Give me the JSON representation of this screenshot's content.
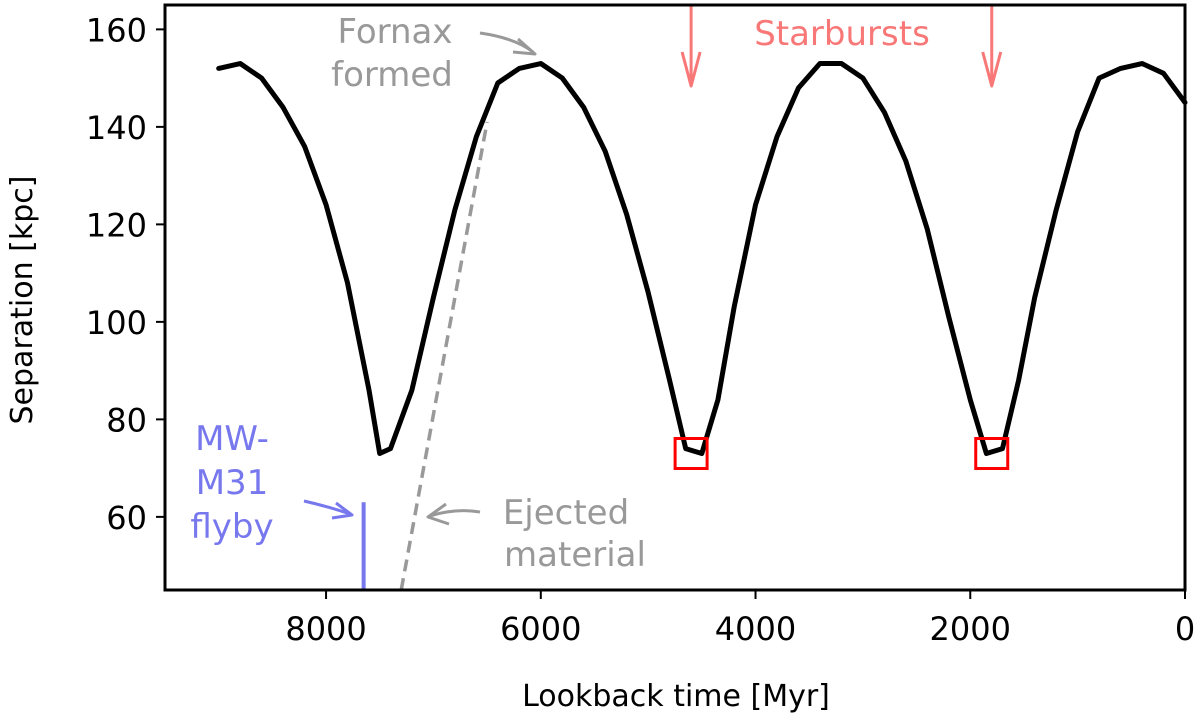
{
  "chart_data": {
    "type": "line",
    "xlabel": "Lookback time [Myr]",
    "ylabel": "Separation  [kpc]",
    "xlim": [
      9500,
      0
    ],
    "ylim": [
      45,
      165
    ],
    "x_inverted": true,
    "x_ticks": [
      8000,
      6000,
      4000,
      2000,
      0
    ],
    "y_ticks": [
      60,
      80,
      100,
      120,
      140,
      160
    ],
    "grid": false,
    "series": [
      {
        "color": "#000000",
        "x": [
          9000,
          8800,
          8600,
          8400,
          8200,
          8000,
          7800,
          7600,
          7500,
          7400,
          7200,
          7000,
          6800,
          6600,
          6400,
          6200,
          6000,
          5800,
          5600,
          5400,
          5200,
          5000,
          4800,
          4650,
          4500,
          4350,
          4200,
          4000,
          3800,
          3600,
          3400,
          3200,
          3000,
          2800,
          2600,
          2400,
          2200,
          2000,
          1850,
          1700,
          1550,
          1400,
          1200,
          1000,
          800,
          600,
          400,
          200,
          0
        ],
        "y": [
          152,
          153,
          150,
          144,
          136,
          124,
          108,
          86,
          73,
          74,
          86,
          105,
          123,
          138,
          149,
          152,
          153,
          150,
          144,
          135,
          122,
          106,
          88,
          74,
          73,
          84,
          103,
          124,
          138,
          148,
          153,
          153,
          150,
          143,
          133,
          119,
          101,
          84,
          73,
          74,
          88,
          105,
          123,
          139,
          150,
          152,
          153,
          151,
          145
        ]
      }
    ],
    "ejected_material": {
      "color": "#999999",
      "style": "dashed",
      "x": [
        7300,
        6500
      ],
      "y": [
        45,
        141
      ]
    },
    "flyby_line": {
      "color": "#7777ee",
      "x": 7650,
      "y": [
        45,
        63
      ]
    },
    "starburst_markers": {
      "color": "#ff0000",
      "x": [
        4600,
        1800
      ],
      "y": [
        73,
        73
      ]
    },
    "starburst_arrows": {
      "color": "#f87878",
      "x": [
        4600,
        1800
      ]
    },
    "annotations": [
      {
        "lines": [
          "Fornax",
          "formed"
        ],
        "color": "#999999"
      },
      {
        "lines": [
          "Starbursts"
        ],
        "color": "#f87878"
      },
      {
        "lines": [
          "MW-",
          "M31",
          "flyby"
        ],
        "color": "#7777ee"
      },
      {
        "lines": [
          "Ejected",
          "material"
        ],
        "color": "#999999"
      }
    ]
  }
}
